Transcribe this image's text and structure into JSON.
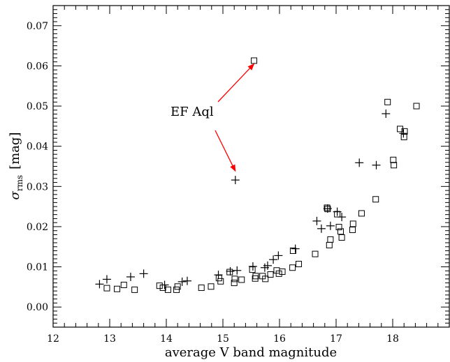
{
  "chart_data": {
    "type": "scatter",
    "title": "",
    "xlabel": "average V band magnitude",
    "ylabel": {
      "symbol": "σ",
      "subscript": "rms",
      "unit": "[mag]"
    },
    "xlim": [
      12,
      19
    ],
    "ylim": [
      -0.005,
      0.075
    ],
    "x_ticks": [
      "12",
      "13",
      "14",
      "15",
      "16",
      "17",
      "18"
    ],
    "y_ticks": [
      "0.00",
      "0.01",
      "0.02",
      "0.03",
      "0.04",
      "0.05",
      "0.06",
      "0.07"
    ],
    "grid": false,
    "annotation": {
      "text": "EF Aql",
      "arrow_color": "#ff0000",
      "targets": [
        [
          15.55,
          0.0605
        ],
        [
          15.22,
          0.0338
        ]
      ]
    },
    "series": [
      {
        "marker": "square",
        "points": [
          [
            12.95,
            0.0047
          ],
          [
            13.13,
            0.0045
          ],
          [
            13.25,
            0.0055
          ],
          [
            13.44,
            0.0043
          ],
          [
            13.88,
            0.0053
          ],
          [
            13.94,
            0.0048
          ],
          [
            14.03,
            0.0043
          ],
          [
            14.18,
            0.0043
          ],
          [
            14.2,
            0.0051
          ],
          [
            14.62,
            0.0048
          ],
          [
            14.79,
            0.0051
          ],
          [
            14.93,
            0.0072
          ],
          [
            14.96,
            0.0064
          ],
          [
            15.12,
            0.0087
          ],
          [
            15.2,
            0.006
          ],
          [
            15.21,
            0.007
          ],
          [
            15.33,
            0.0068
          ],
          [
            15.52,
            0.0093
          ],
          [
            15.57,
            0.0071
          ],
          [
            15.58,
            0.0077
          ],
          [
            15.7,
            0.0077
          ],
          [
            15.75,
            0.007
          ],
          [
            15.84,
            0.0081
          ],
          [
            15.95,
            0.0091
          ],
          [
            15.99,
            0.0083
          ],
          [
            16.05,
            0.0088
          ],
          [
            16.23,
            0.0098
          ],
          [
            16.24,
            0.014
          ],
          [
            16.34,
            0.0107
          ],
          [
            16.63,
            0.0132
          ],
          [
            16.84,
            0.0247
          ],
          [
            16.85,
            0.0244
          ],
          [
            16.88,
            0.0154
          ],
          [
            16.9,
            0.0168
          ],
          [
            17.02,
            0.0231
          ],
          [
            17.05,
            0.0199
          ],
          [
            17.08,
            0.0188
          ],
          [
            17.1,
            0.0173
          ],
          [
            17.29,
            0.0192
          ],
          [
            17.3,
            0.0207
          ],
          [
            17.45,
            0.0233
          ],
          [
            17.7,
            0.0268
          ],
          [
            17.91,
            0.051
          ],
          [
            18.01,
            0.0366
          ],
          [
            18.02,
            0.0353
          ],
          [
            18.13,
            0.0443
          ],
          [
            18.2,
            0.0423
          ],
          [
            18.21,
            0.0437
          ],
          [
            18.42,
            0.05
          ],
          [
            15.55,
            0.0613
          ]
        ]
      },
      {
        "marker": "plus",
        "points": [
          [
            12.82,
            0.0057
          ],
          [
            12.95,
            0.0069
          ],
          [
            13.37,
            0.0075
          ],
          [
            13.6,
            0.0083
          ],
          [
            13.97,
            0.0055
          ],
          [
            14.28,
            0.0063
          ],
          [
            14.37,
            0.0065
          ],
          [
            14.92,
            0.008
          ],
          [
            15.13,
            0.0089
          ],
          [
            15.25,
            0.0091
          ],
          [
            15.53,
            0.0101
          ],
          [
            15.74,
            0.0098
          ],
          [
            15.79,
            0.0103
          ],
          [
            15.89,
            0.0118
          ],
          [
            15.98,
            0.0128
          ],
          [
            16.28,
            0.0145
          ],
          [
            16.66,
            0.0214
          ],
          [
            16.74,
            0.0195
          ],
          [
            16.85,
            0.0245
          ],
          [
            16.9,
            0.0202
          ],
          [
            17.02,
            0.0237
          ],
          [
            17.1,
            0.0224
          ],
          [
            17.41,
            0.0359
          ],
          [
            17.71,
            0.0353
          ],
          [
            17.88,
            0.0481
          ],
          [
            18.19,
            0.0432
          ],
          [
            15.22,
            0.0316
          ]
        ]
      }
    ]
  }
}
